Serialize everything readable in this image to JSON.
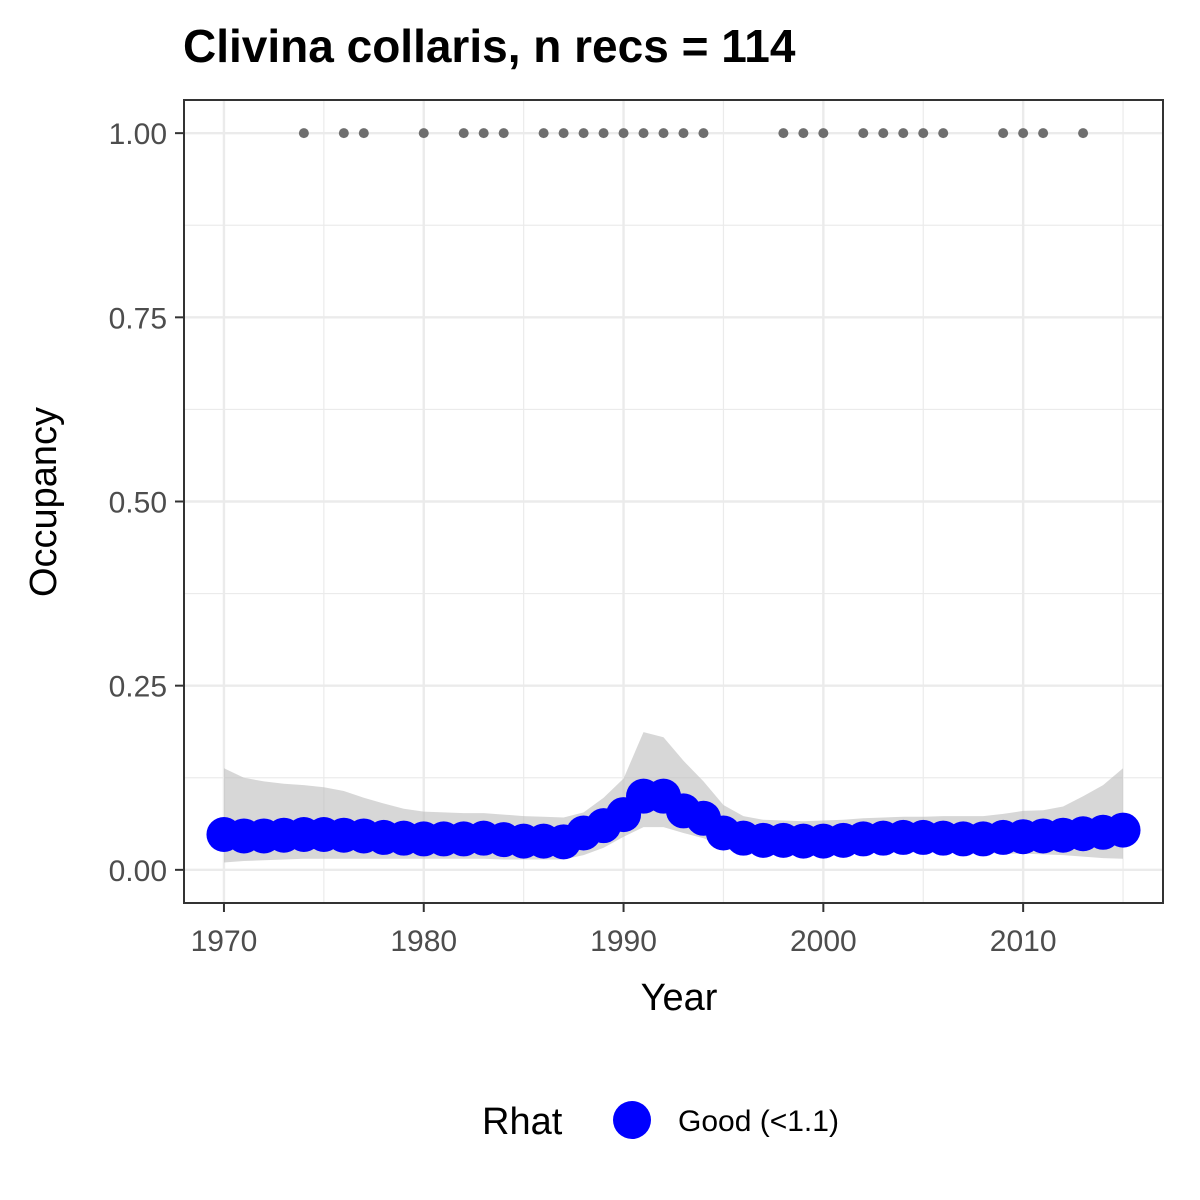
{
  "chart_data": {
    "type": "line",
    "title": "Clivina collaris, n recs = 114",
    "xlabel": "Year",
    "ylabel": "Occupancy",
    "xlim": [
      1968,
      2017
    ],
    "ylim": [
      -0.045,
      1.045
    ],
    "x_ticks": [
      1970,
      1980,
      1990,
      2000,
      2010
    ],
    "x_tick_labels": [
      "1970",
      "1980",
      "1990",
      "2000",
      "2010"
    ],
    "y_ticks": [
      0,
      0.25,
      0.5,
      0.75,
      1.0
    ],
    "y_tick_labels": [
      "0.00",
      "0.25",
      "0.50",
      "0.75",
      "1.00"
    ],
    "grid": true,
    "legend": {
      "title": "Rhat",
      "placement": "bottom",
      "entries": [
        {
          "label": "Good (<1.1)",
          "color": "#0000ff"
        }
      ]
    },
    "colors": {
      "series": "#0000ff",
      "ribbon": "#bdbdbd",
      "records": "#6e6e6e",
      "grid": "#ebebeb",
      "border": "#333333"
    },
    "series": [
      {
        "name": "Good (<1.1)",
        "x": [
          1970,
          1971,
          1972,
          1973,
          1974,
          1975,
          1976,
          1977,
          1978,
          1979,
          1980,
          1981,
          1982,
          1983,
          1984,
          1985,
          1986,
          1987,
          1988,
          1989,
          1990,
          1991,
          1992,
          1993,
          1994,
          1995,
          1996,
          1997,
          1998,
          1999,
          2000,
          2001,
          2002,
          2003,
          2004,
          2005,
          2006,
          2007,
          2008,
          2009,
          2010,
          2011,
          2012,
          2013,
          2014,
          2015
        ],
        "y": [
          0.048,
          0.046,
          0.046,
          0.047,
          0.048,
          0.048,
          0.047,
          0.046,
          0.044,
          0.043,
          0.042,
          0.042,
          0.042,
          0.043,
          0.041,
          0.039,
          0.039,
          0.038,
          0.05,
          0.06,
          0.075,
          0.1,
          0.1,
          0.08,
          0.07,
          0.05,
          0.043,
          0.04,
          0.04,
          0.039,
          0.039,
          0.04,
          0.042,
          0.043,
          0.044,
          0.044,
          0.043,
          0.042,
          0.042,
          0.044,
          0.045,
          0.046,
          0.047,
          0.049,
          0.051,
          0.054
        ]
      }
    ],
    "ribbon": {
      "x": [
        1970,
        1971,
        1972,
        1973,
        1974,
        1975,
        1976,
        1977,
        1978,
        1979,
        1980,
        1981,
        1982,
        1983,
        1984,
        1985,
        1986,
        1987,
        1988,
        1989,
        1990,
        1991,
        1992,
        1993,
        1994,
        1995,
        1996,
        1997,
        1998,
        1999,
        2000,
        2001,
        2002,
        2003,
        2004,
        2005,
        2006,
        2007,
        2008,
        2009,
        2010,
        2011,
        2012,
        2013,
        2014,
        2015
      ],
      "lower": [
        0.01,
        0.012,
        0.013,
        0.014,
        0.015,
        0.015,
        0.015,
        0.015,
        0.015,
        0.015,
        0.015,
        0.015,
        0.015,
        0.015,
        0.014,
        0.014,
        0.014,
        0.014,
        0.02,
        0.03,
        0.045,
        0.058,
        0.058,
        0.05,
        0.043,
        0.032,
        0.026,
        0.023,
        0.022,
        0.022,
        0.022,
        0.022,
        0.023,
        0.024,
        0.024,
        0.024,
        0.024,
        0.023,
        0.023,
        0.022,
        0.022,
        0.021,
        0.02,
        0.018,
        0.016,
        0.015
      ],
      "upper": [
        0.138,
        0.125,
        0.12,
        0.117,
        0.115,
        0.112,
        0.107,
        0.098,
        0.09,
        0.083,
        0.079,
        0.078,
        0.077,
        0.077,
        0.075,
        0.073,
        0.072,
        0.071,
        0.078,
        0.098,
        0.124,
        0.187,
        0.18,
        0.148,
        0.12,
        0.088,
        0.073,
        0.068,
        0.067,
        0.066,
        0.067,
        0.068,
        0.07,
        0.071,
        0.072,
        0.072,
        0.073,
        0.073,
        0.073,
        0.076,
        0.08,
        0.081,
        0.086,
        0.1,
        0.115,
        0.138
      ]
    },
    "records": {
      "y": 1.0,
      "x": [
        1974,
        1976,
        1977,
        1980,
        1982,
        1983,
        1984,
        1986,
        1987,
        1988,
        1989,
        1990,
        1991,
        1992,
        1993,
        1994,
        1998,
        1999,
        2000,
        2002,
        2003,
        2004,
        2005,
        2006,
        2009,
        2010,
        2011,
        2013
      ]
    }
  }
}
